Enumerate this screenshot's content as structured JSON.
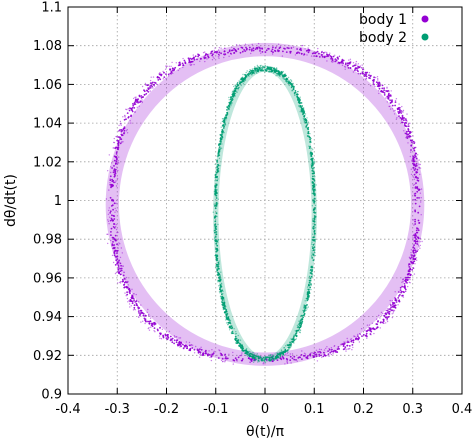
{
  "chart_data": {
    "type": "scatter",
    "xlabel": "θ(t)/π",
    "ylabel": "dθ/dt(t)",
    "xlim": [
      -0.4,
      0.4
    ],
    "ylim": [
      0.9,
      1.1
    ],
    "x_ticks": [
      "-0.4",
      "-0.3",
      "-0.2",
      "-0.1",
      "0",
      "0.1",
      "0.2",
      "0.3",
      "0.4"
    ],
    "y_ticks": [
      "0.9",
      "0.92",
      "0.94",
      "0.96",
      "0.98",
      "1",
      "1.02",
      "1.04",
      "1.06",
      "1.08",
      "1.1"
    ],
    "grid": true,
    "grid_style": "dotted",
    "legend_position": "top-right",
    "series": [
      {
        "name": "body 1",
        "color": "#9400d3",
        "shape": "closed orbit",
        "center": [
          0,
          0.998
        ],
        "x_extent": [
          -0.31,
          0.31
        ],
        "y_extent": [
          0.918,
          1.078
        ],
        "band_width_x": 0.03,
        "band_width_y": 0.008
      },
      {
        "name": "body 2",
        "color": "#009e73",
        "shape": "closed orbit",
        "center": [
          0,
          0.993
        ],
        "x_extent": [
          -0.1,
          0.1
        ],
        "y_extent": [
          0.918,
          1.068
        ],
        "band_width_x": 0.012,
        "band_width_y": 0.006
      }
    ]
  }
}
